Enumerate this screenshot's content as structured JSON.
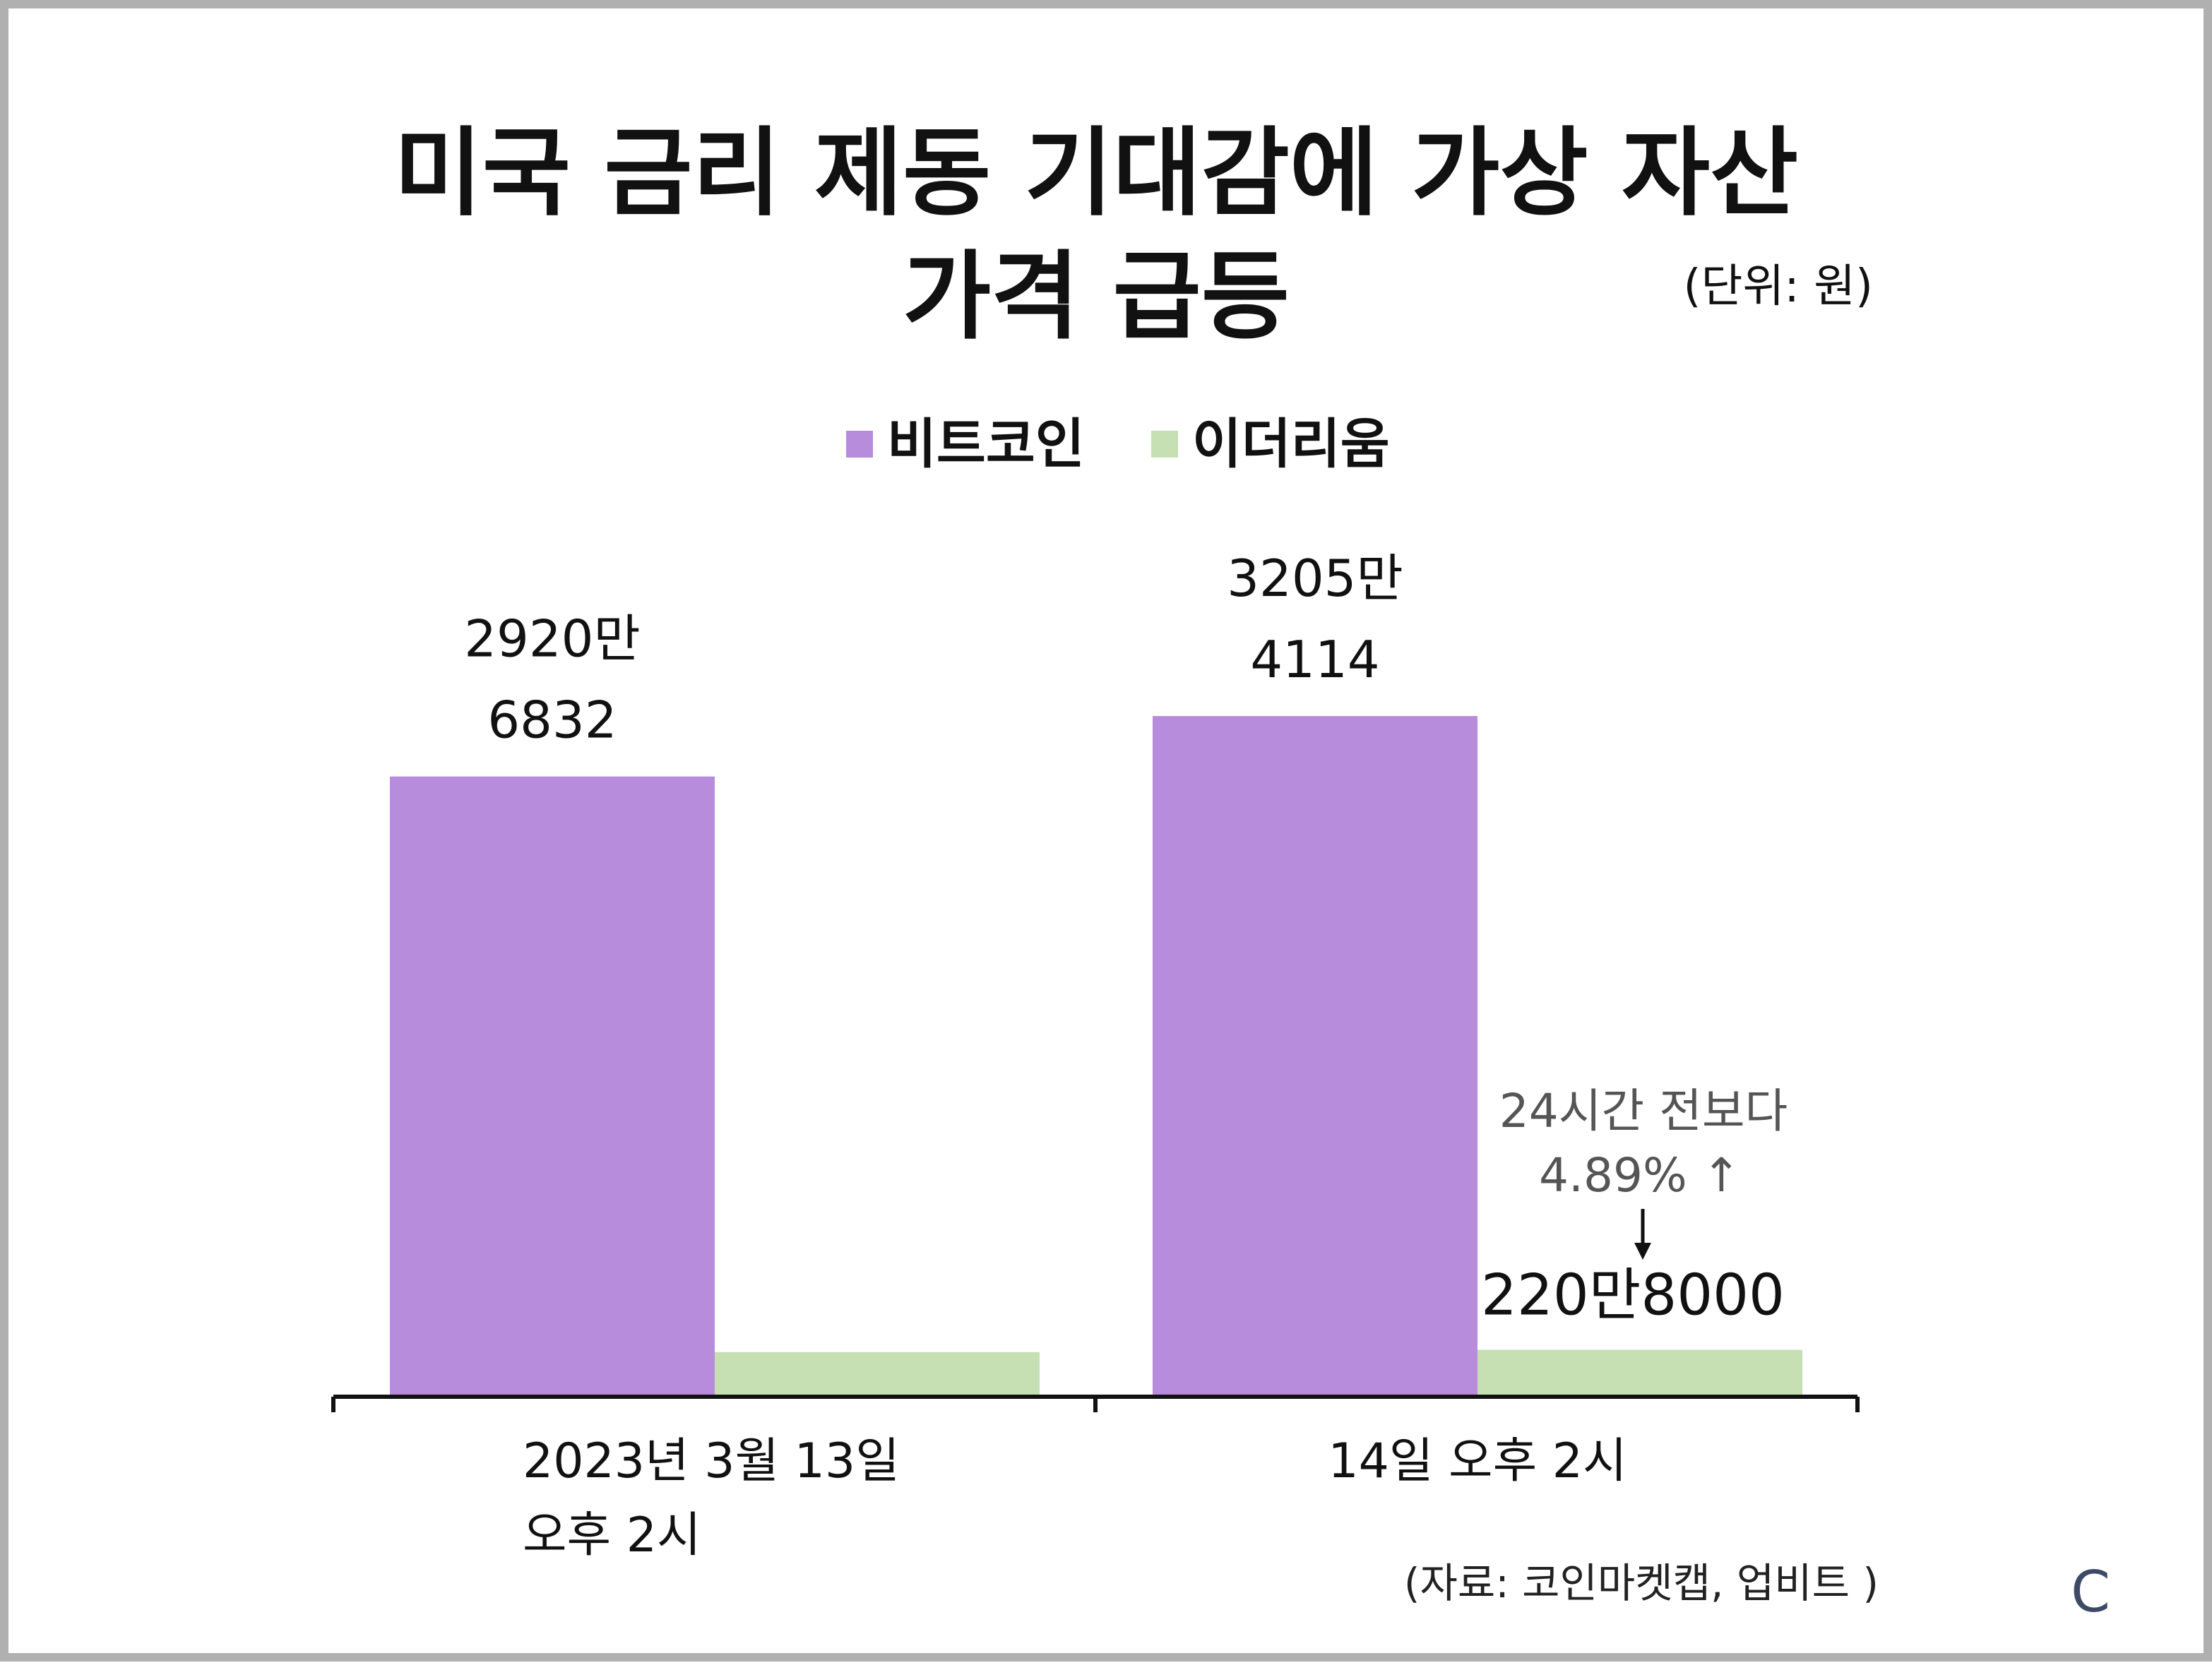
{
  "chart_data": {
    "type": "bar",
    "title_lines": [
      "미국 금리 제동 기대감에 가상 자산",
      "가격 급등"
    ],
    "unit_note": "(단위: 원)",
    "categories": [
      [
        "2023년 3월 13일",
        "오후 2시"
      ],
      [
        "14일 오후 2시"
      ]
    ],
    "series": [
      {
        "name": "비트코인",
        "color": "#b88cdc",
        "values": [
          29206832,
          32054114
        ],
        "labels": [
          [
            "2920만",
            "6832"
          ],
          [
            "3205만",
            "4114"
          ]
        ]
      },
      {
        "name": "이더리움",
        "color": "#c6e0b4",
        "values": [
          2102000,
          2208000
        ],
        "labels": [
          null,
          [
            "220만8000"
          ]
        ]
      }
    ],
    "annotation": [
      "24시간 전보다",
      "4.89% ↑"
    ],
    "ylim": [
      0,
      32054114
    ],
    "grid": false,
    "legend_position": "top-center",
    "source": "(자료: 코인마켓캡, 업비트 )"
  },
  "corner_mark": "C"
}
